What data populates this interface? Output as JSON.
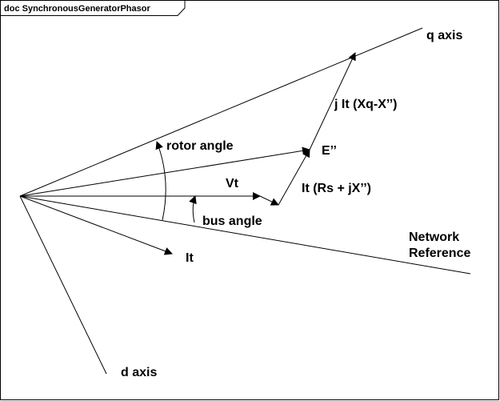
{
  "frame": {
    "title": "doc SynchronousGeneratorPhasor"
  },
  "labels": {
    "q_axis": "q axis",
    "d_axis": "d axis",
    "rotor_angle": "rotor angle",
    "bus_angle": "bus angle",
    "vt": "Vt",
    "e_dbl_prime": "E’’",
    "it": "It",
    "it_rs_jx": "It (Rs + jX’’)",
    "j_it_xq": "j It (Xq-X’’)",
    "network_reference_line1": "Network",
    "network_reference_line2": "Reference"
  }
}
